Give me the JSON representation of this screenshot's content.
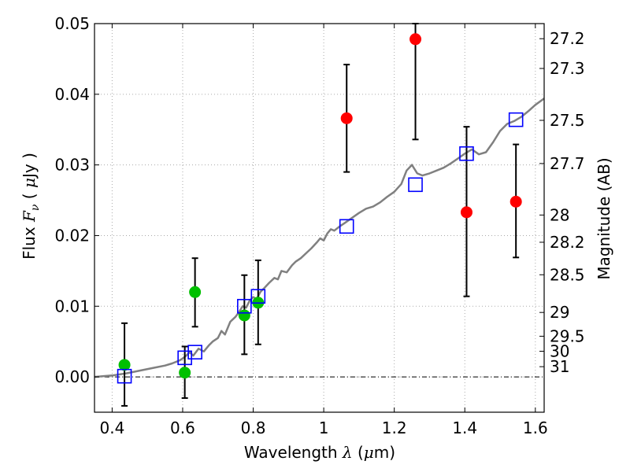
{
  "chart_data": {
    "type": "scatter",
    "xlabel": {
      "pre": "Wavelength  ",
      "sym": "λ",
      "post": " (",
      "mu": "μ",
      "unit": "m)"
    },
    "ylabel": {
      "pre": "Flux  ",
      "sym": "F",
      "sub": "ν",
      "post": "  ( ",
      "mu": "μ",
      "unit": "Jy )"
    },
    "y2label": "Magnitude (AB)",
    "xlim": [
      0.35,
      1.625
    ],
    "ylim": [
      -0.005,
      0.05
    ],
    "x_ticks": [
      {
        "value": 0.4,
        "label": "0.4"
      },
      {
        "value": 0.6,
        "label": "0.6"
      },
      {
        "value": 0.8,
        "label": "0.8"
      },
      {
        "value": 1.0,
        "label": "1"
      },
      {
        "value": 1.2,
        "label": "1.2"
      },
      {
        "value": 1.4,
        "label": "1.4"
      },
      {
        "value": 1.6,
        "label": "1.6"
      }
    ],
    "y_ticks": [
      {
        "value": 0.0,
        "label": "0.00"
      },
      {
        "value": 0.01,
        "label": "0.01"
      },
      {
        "value": 0.02,
        "label": "0.02"
      },
      {
        "value": 0.03,
        "label": "0.03"
      },
      {
        "value": 0.04,
        "label": "0.04"
      },
      {
        "value": 0.05,
        "label": "0.05"
      }
    ],
    "mag_ticks": [
      {
        "mag": 27.2,
        "label": "27.2"
      },
      {
        "mag": 27.3,
        "label": "27.3"
      },
      {
        "mag": 27.5,
        "label": "27.5"
      },
      {
        "mag": 27.7,
        "label": "27.7"
      },
      {
        "mag": 28.0,
        "label": "28"
      },
      {
        "mag": 28.2,
        "label": "28.2"
      },
      {
        "mag": 28.5,
        "label": "28.5"
      },
      {
        "mag": 29.0,
        "label": "29"
      },
      {
        "mag": 29.5,
        "label": "29.5"
      },
      {
        "mag": 30.0,
        "label": "30"
      },
      {
        "mag": 31.0,
        "label": "31"
      }
    ],
    "grid": true,
    "zero_line": true,
    "colors": {
      "green": "#00c000",
      "red": "#ff0000",
      "model_box": "#0000ff",
      "sed": "#808080",
      "errorbar": "#000000",
      "grid": "#aaaaaa"
    },
    "series": [
      {
        "points": [
          {
            "x": 0.435,
            "y": 0.0017,
            "ylo": -0.0041,
            "yhi": 0.0076
          },
          {
            "x": 0.606,
            "y": 0.0006,
            "ylo": -0.003,
            "yhi": 0.0043
          },
          {
            "x": 0.635,
            "y": 0.012,
            "ylo": 0.0071,
            "yhi": 0.0168
          },
          {
            "x": 0.775,
            "y": 0.0087,
            "ylo": 0.0032,
            "yhi": 0.0144
          },
          {
            "x": 0.814,
            "y": 0.0105,
            "ylo": 0.0046,
            "yhi": 0.0165
          }
        ]
      },
      {
        "points": [
          {
            "x": 1.065,
            "y": 0.0366,
            "ylo": 0.029,
            "yhi": 0.0442
          },
          {
            "x": 1.26,
            "y": 0.0478,
            "ylo": 0.0336,
            "yhi": 0.05
          },
          {
            "x": 1.405,
            "y": 0.0233,
            "ylo": 0.0114,
            "yhi": 0.0354
          },
          {
            "x": 1.545,
            "y": 0.0248,
            "ylo": 0.0169,
            "yhi": 0.0329
          }
        ]
      },
      {
        "points": [
          {
            "x": 0.435,
            "y": 0.0001
          },
          {
            "x": 0.606,
            "y": 0.0027
          },
          {
            "x": 0.635,
            "y": 0.0035
          },
          {
            "x": 0.775,
            "y": 0.01
          },
          {
            "x": 0.814,
            "y": 0.0114
          },
          {
            "x": 1.065,
            "y": 0.0213
          },
          {
            "x": 1.26,
            "y": 0.0272
          },
          {
            "x": 1.405,
            "y": 0.0316
          },
          {
            "x": 1.545,
            "y": 0.0364
          }
        ]
      },
      {
        "line": [
          [
            0.35,
            0.0
          ],
          [
            0.4,
            0.0002
          ],
          [
            0.44,
            0.0005
          ],
          [
            0.48,
            0.0009
          ],
          [
            0.52,
            0.0013
          ],
          [
            0.55,
            0.0016
          ],
          [
            0.57,
            0.0019
          ],
          [
            0.59,
            0.0023
          ],
          [
            0.6,
            0.0026
          ],
          [
            0.61,
            0.003
          ],
          [
            0.62,
            0.0035
          ],
          [
            0.63,
            0.003
          ],
          [
            0.645,
            0.004
          ],
          [
            0.66,
            0.0036
          ],
          [
            0.675,
            0.0045
          ],
          [
            0.685,
            0.005
          ],
          [
            0.7,
            0.0055
          ],
          [
            0.71,
            0.0065
          ],
          [
            0.72,
            0.006
          ],
          [
            0.735,
            0.0078
          ],
          [
            0.75,
            0.0085
          ],
          [
            0.76,
            0.0092
          ],
          [
            0.77,
            0.01
          ],
          [
            0.78,
            0.0098
          ],
          [
            0.79,
            0.0108
          ],
          [
            0.8,
            0.0113
          ],
          [
            0.81,
            0.011
          ],
          [
            0.82,
            0.012
          ],
          [
            0.83,
            0.0125
          ],
          [
            0.845,
            0.0133
          ],
          [
            0.86,
            0.014
          ],
          [
            0.87,
            0.0138
          ],
          [
            0.88,
            0.015
          ],
          [
            0.895,
            0.0148
          ],
          [
            0.91,
            0.0158
          ],
          [
            0.92,
            0.0163
          ],
          [
            0.935,
            0.0168
          ],
          [
            0.95,
            0.0175
          ],
          [
            0.965,
            0.0182
          ],
          [
            0.98,
            0.019
          ],
          [
            0.99,
            0.0196
          ],
          [
            1.0,
            0.0193
          ],
          [
            1.01,
            0.0203
          ],
          [
            1.02,
            0.0209
          ],
          [
            1.03,
            0.0207
          ],
          [
            1.045,
            0.0213
          ],
          [
            1.06,
            0.0218
          ],
          [
            1.08,
            0.0225
          ],
          [
            1.1,
            0.0232
          ],
          [
            1.12,
            0.0238
          ],
          [
            1.14,
            0.0241
          ],
          [
            1.16,
            0.0247
          ],
          [
            1.18,
            0.0255
          ],
          [
            1.2,
            0.0262
          ],
          [
            1.22,
            0.0273
          ],
          [
            1.235,
            0.0292
          ],
          [
            1.25,
            0.03
          ],
          [
            1.265,
            0.0288
          ],
          [
            1.28,
            0.0285
          ],
          [
            1.3,
            0.0288
          ],
          [
            1.32,
            0.0292
          ],
          [
            1.34,
            0.0296
          ],
          [
            1.36,
            0.0302
          ],
          [
            1.38,
            0.0309
          ],
          [
            1.4,
            0.0316
          ],
          [
            1.42,
            0.0322
          ],
          [
            1.44,
            0.0315
          ],
          [
            1.46,
            0.0318
          ],
          [
            1.48,
            0.0332
          ],
          [
            1.5,
            0.0348
          ],
          [
            1.52,
            0.0358
          ],
          [
            1.54,
            0.0362
          ],
          [
            1.56,
            0.0368
          ],
          [
            1.58,
            0.0376
          ],
          [
            1.6,
            0.0385
          ],
          [
            1.625,
            0.0394
          ]
        ]
      }
    ]
  }
}
